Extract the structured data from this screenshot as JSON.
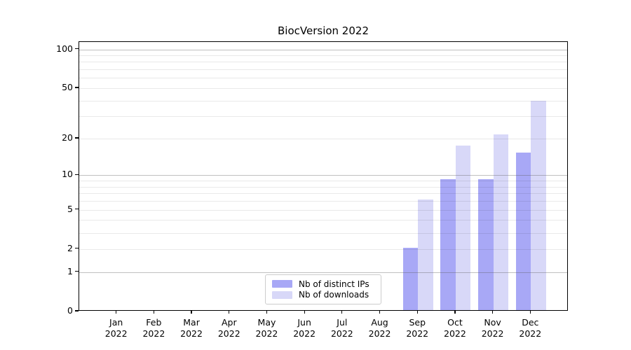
{
  "figure": {
    "background": "#ffffff"
  },
  "chart_data": {
    "type": "bar",
    "title": "BiocVersion 2022",
    "categories": [
      "Jan",
      "Feb",
      "Mar",
      "Apr",
      "May",
      "Jun",
      "Jul",
      "Aug",
      "Sep",
      "Oct",
      "Nov",
      "Dec"
    ],
    "category_sub_label": "2022",
    "series": [
      {
        "name": "Nb of distinct IPs",
        "color": "#a8a8f6",
        "values": [
          0,
          0,
          0,
          0,
          0,
          0,
          0,
          0,
          2,
          9,
          9,
          15
        ]
      },
      {
        "name": "Nb of downloads",
        "color": "#d8d8f8",
        "values": [
          0,
          0,
          0,
          0,
          0,
          0,
          0,
          0,
          6,
          17,
          21,
          39
        ]
      }
    ],
    "xlabel": "",
    "ylabel": "",
    "yscale": "log1p",
    "yticks": [
      0,
      1,
      2,
      5,
      10,
      20,
      50,
      100
    ],
    "major_gridlines": [
      1,
      10,
      100
    ],
    "minor_gridlines": [
      2,
      3,
      4,
      5,
      6,
      7,
      8,
      9,
      20,
      30,
      40,
      50,
      60,
      70,
      80,
      90
    ],
    "ylim": [
      0,
      114
    ],
    "grid": "horizontal-on",
    "legend_position": "lower-center-inside"
  }
}
